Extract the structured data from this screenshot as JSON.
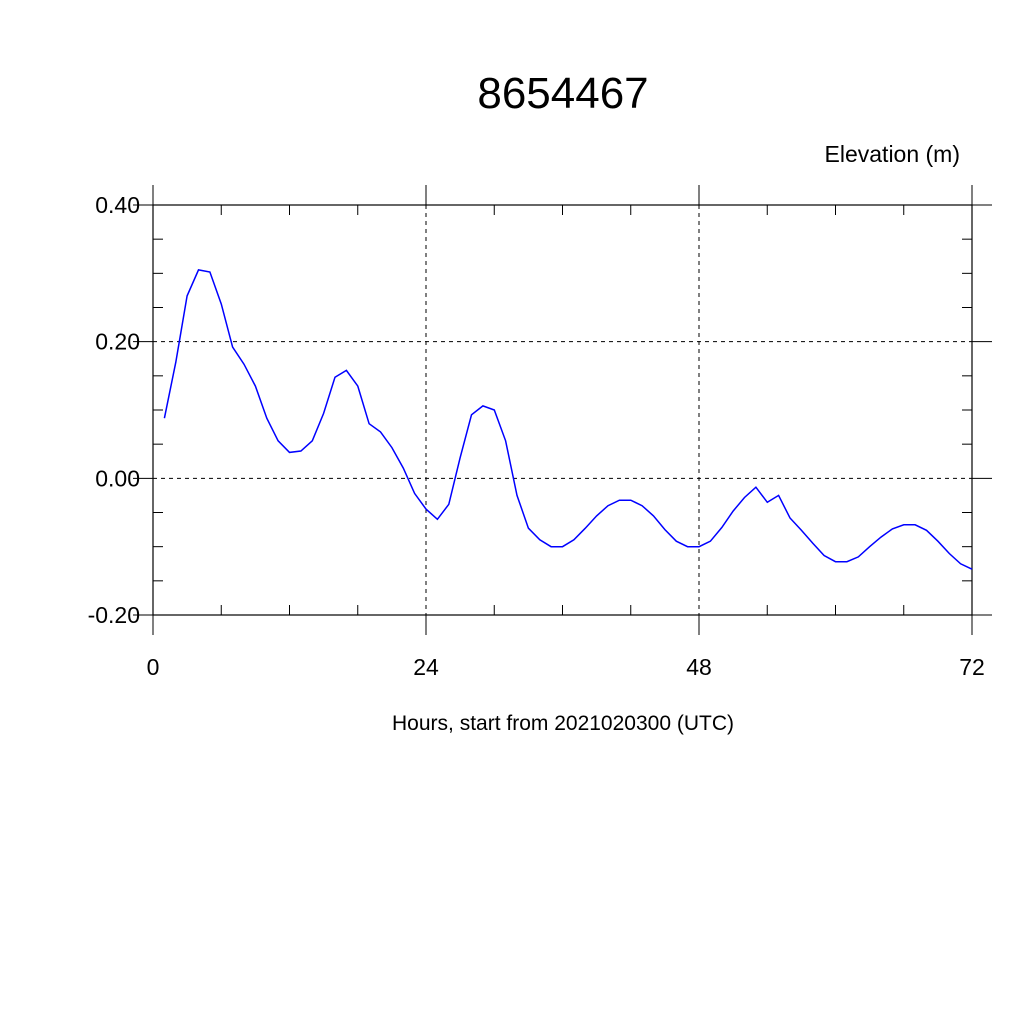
{
  "chart_data": {
    "type": "line",
    "title": "8654467",
    "ylabel": "Elevation (m)",
    "xlabel": "Hours, start from 2021020300 (UTC)",
    "xlim": [
      0,
      72
    ],
    "ylim": [
      -0.2,
      0.4
    ],
    "xticks": [
      0,
      24,
      48,
      72
    ],
    "xtick_labels": [
      "0",
      "24",
      "48",
      "72"
    ],
    "xminor_step": 6,
    "yticks": [
      -0.2,
      0,
      0.2,
      0.4
    ],
    "ytick_labels": [
      "-0.20",
      "0.00",
      "0.20",
      "0.40"
    ],
    "yminor_step": 0.05,
    "grid": true,
    "line_color": "#0000ff",
    "series": [
      {
        "x": [
          1,
          2,
          3,
          4,
          5,
          6,
          7,
          8,
          9,
          10,
          11,
          12,
          13,
          14,
          15,
          16,
          17,
          18,
          19,
          20,
          21,
          22,
          23,
          24,
          25,
          26,
          27,
          28,
          29,
          30,
          31,
          32,
          33,
          34,
          35,
          36,
          37,
          38,
          39,
          40,
          41,
          42,
          43,
          44,
          45,
          46,
          47,
          48,
          49,
          50,
          51,
          52,
          53,
          54,
          55,
          56,
          57,
          58,
          59,
          60,
          61,
          62,
          63,
          64,
          65,
          66,
          67,
          68,
          69,
          70,
          71,
          72
        ],
        "values": [
          0.088,
          0.17,
          0.267,
          0.305,
          0.302,
          0.255,
          0.192,
          0.167,
          0.135,
          0.088,
          0.055,
          0.038,
          0.04,
          0.055,
          0.095,
          0.148,
          0.158,
          0.135,
          0.08,
          0.068,
          0.045,
          0.015,
          -0.022,
          -0.045,
          -0.06,
          -0.038,
          0.03,
          0.093,
          0.106,
          0.1,
          0.055,
          -0.025,
          -0.073,
          -0.09,
          -0.1,
          -0.1,
          -0.09,
          -0.073,
          -0.055,
          -0.04,
          -0.032,
          -0.032,
          -0.04,
          -0.055,
          -0.075,
          -0.092,
          -0.1,
          -0.1,
          -0.092,
          -0.072,
          -0.048,
          -0.028,
          -0.013,
          -0.035,
          -0.025,
          -0.058,
          -0.076,
          -0.095,
          -0.113,
          -0.122,
          -0.122,
          -0.115,
          -0.1,
          -0.086,
          -0.074,
          -0.068,
          -0.068,
          -0.076,
          -0.092,
          -0.11,
          -0.125,
          -0.133
        ]
      }
    ]
  }
}
